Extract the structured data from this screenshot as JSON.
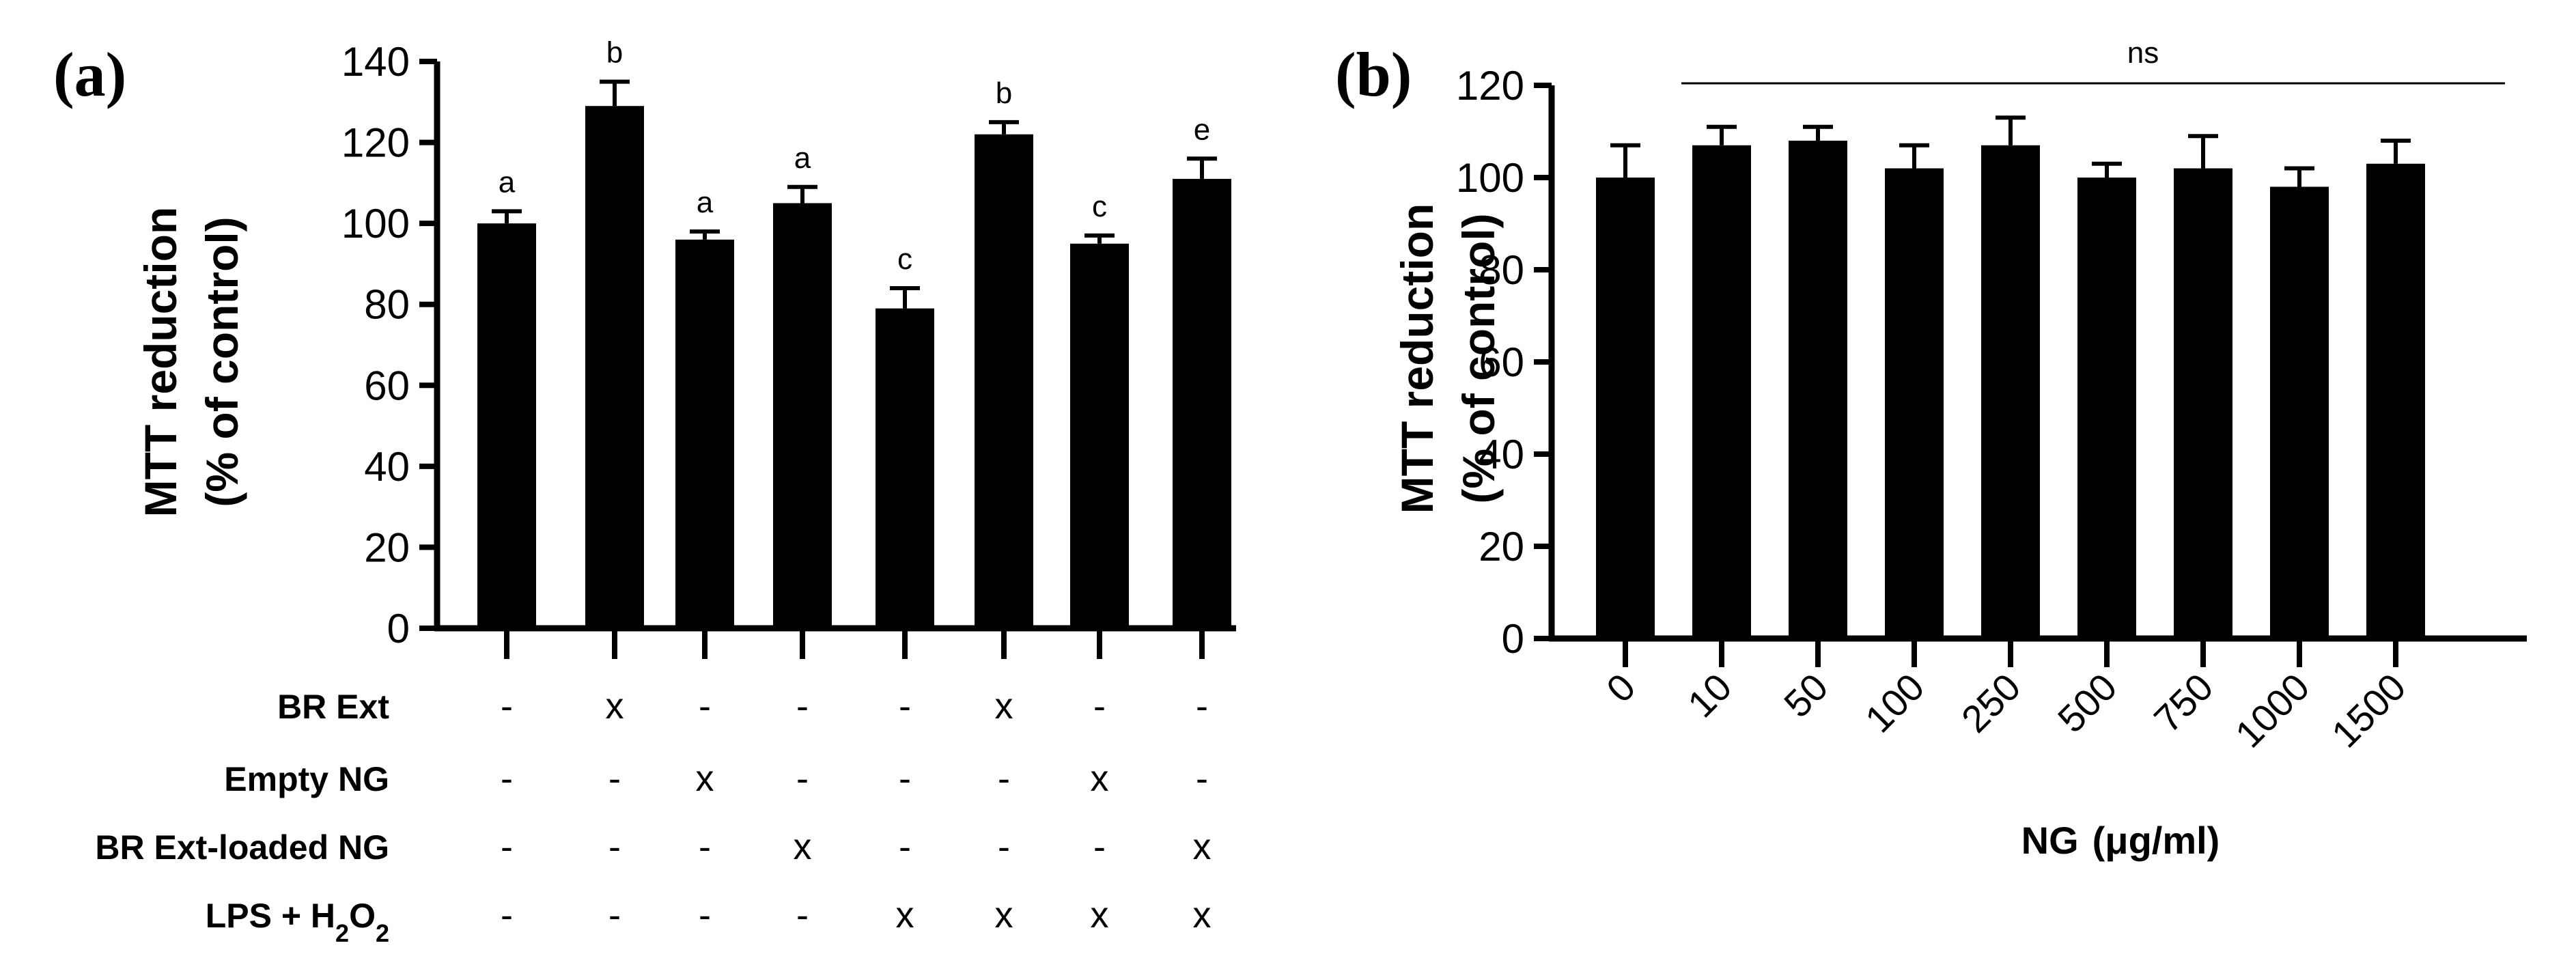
{
  "chart_data": [
    {
      "panel_label": "(a)",
      "type": "bar",
      "ylabel_line1": "MTT reduction",
      "ylabel_line2": "(% of control)",
      "ylim": [
        0,
        140
      ],
      "yticks": [
        "0",
        "20",
        "40",
        "60",
        "80",
        "100",
        "120",
        "140"
      ],
      "values": [
        100,
        129,
        96,
        105,
        79,
        122,
        95,
        111
      ],
      "errors": [
        3,
        6,
        2,
        4,
        5,
        3,
        2,
        5
      ],
      "significance": [
        "a",
        "b",
        "a",
        "a",
        "c",
        "b",
        "c",
        "e"
      ],
      "treatments": [
        {
          "label": "BR Ext",
          "marks": [
            "-",
            "x",
            "-",
            "-",
            "-",
            "x",
            "-",
            "-"
          ]
        },
        {
          "label": "Empty NG",
          "marks": [
            "-",
            "-",
            "x",
            "-",
            "-",
            "-",
            "x",
            "-"
          ]
        },
        {
          "label": "BR Ext-loaded NG",
          "marks": [
            "-",
            "-",
            "-",
            "x",
            "-",
            "-",
            "-",
            "x"
          ]
        },
        {
          "label_main": "LPS + H",
          "label_sub": "2",
          "label_o": "O",
          "label_sub2": "2",
          "marks": [
            "-",
            "-",
            "-",
            "-",
            "x",
            "x",
            "x",
            "x"
          ]
        }
      ]
    },
    {
      "panel_label": "(b)",
      "type": "bar",
      "ylabel_line1": "MTT reduction",
      "ylabel_line2": "(% of control)",
      "ylim": [
        0,
        120
      ],
      "yticks": [
        "0",
        "20",
        "40",
        "60",
        "80",
        "100",
        "120"
      ],
      "categories": [
        "0",
        "10",
        "50",
        "100",
        "250",
        "500",
        "750",
        "1000",
        "1500"
      ],
      "values": [
        100,
        107,
        108,
        102,
        107,
        100,
        102,
        98,
        103
      ],
      "errors": [
        7,
        4,
        3,
        5,
        6,
        3,
        7,
        4,
        5
      ],
      "significance_label": "ns",
      "xlabel_main": "NG",
      "xlabel_unit": "(μg/ml)"
    }
  ]
}
